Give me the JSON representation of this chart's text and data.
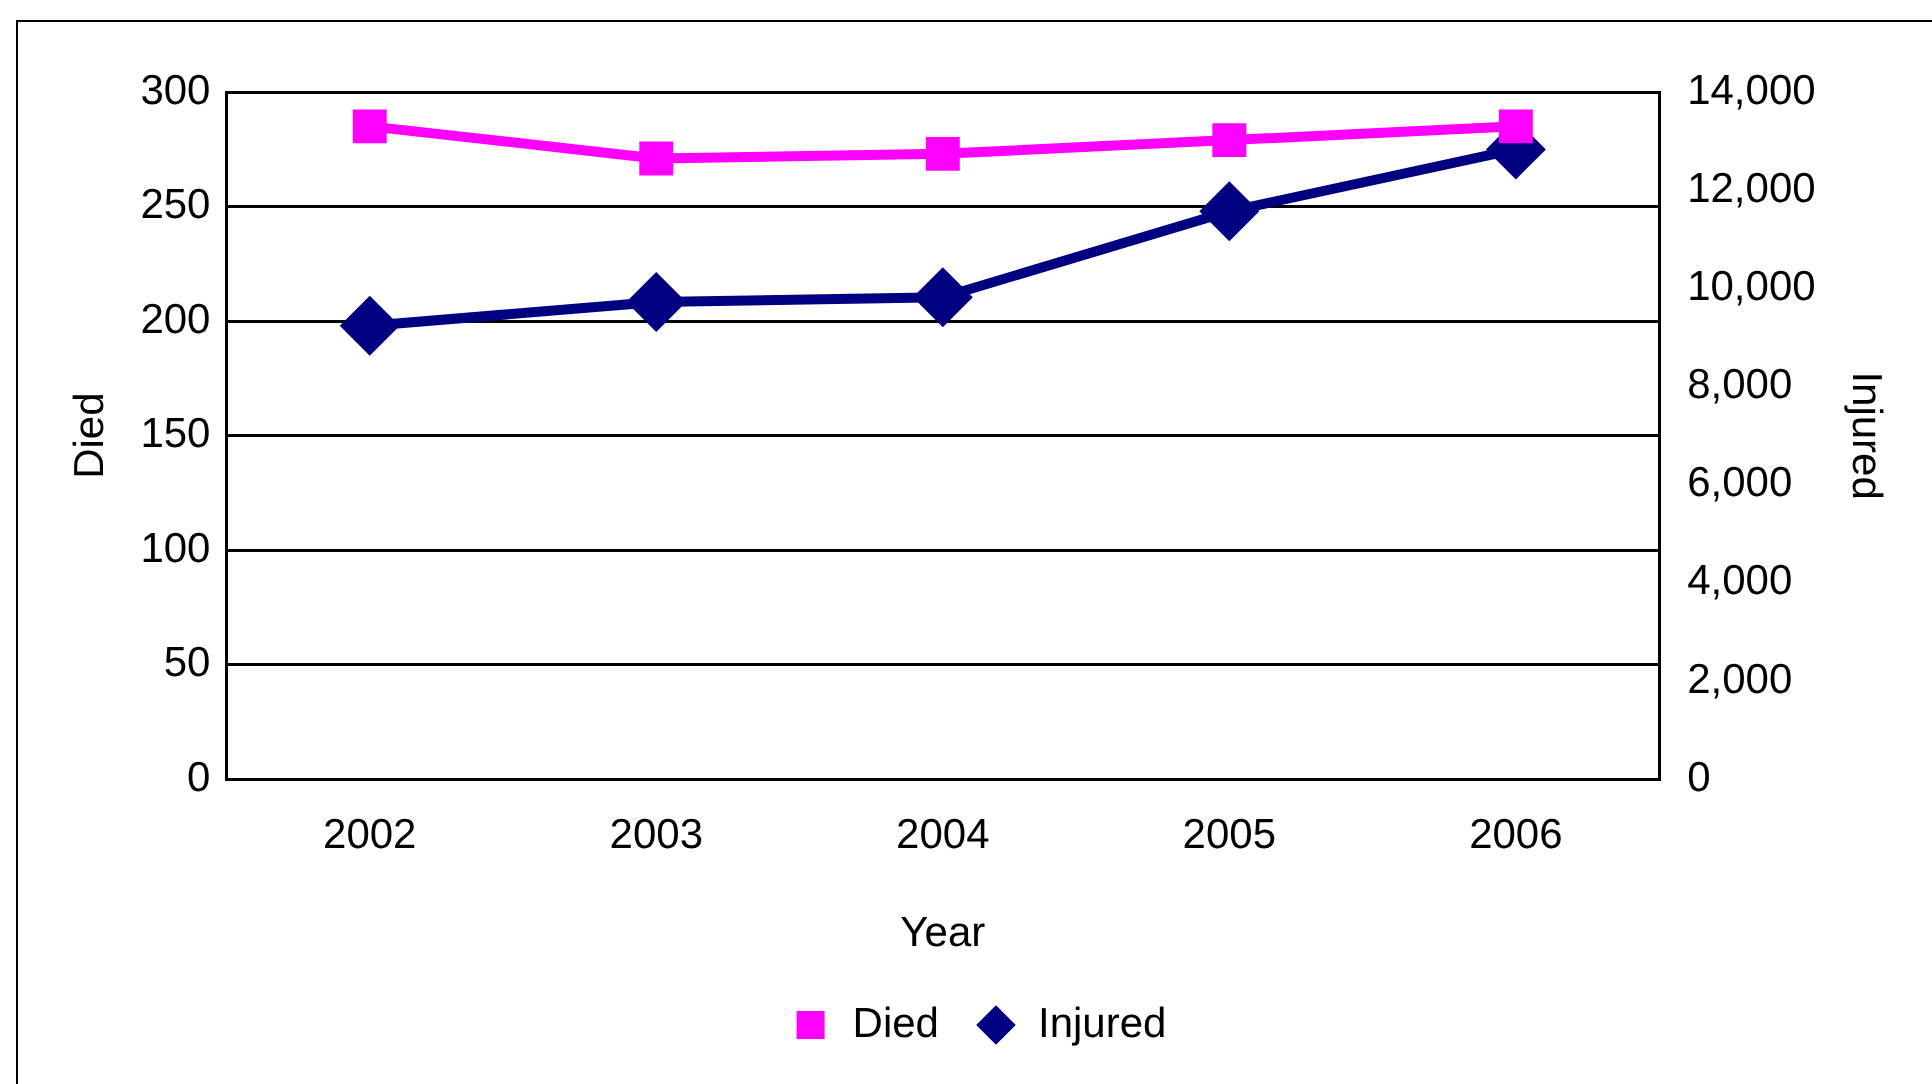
{
  "chart_data": {
    "type": "line",
    "xlabel": "Year",
    "ylabel": "Died",
    "y2label": "Injured",
    "categories": [
      "2002",
      "2003",
      "2004",
      "2005",
      "2006"
    ],
    "series": [
      {
        "name": "Died",
        "color": "#ff00ff",
        "values": [
          285,
          271,
          273,
          279,
          285
        ],
        "marker": "square"
      },
      {
        "name": "Injured",
        "color": "#000080",
        "values": [
          9240,
          9720,
          9820,
          11570,
          12830
        ],
        "axis": "y2",
        "marker": "diamond"
      }
    ],
    "ylim": [
      0,
      300
    ],
    "yticks": [
      0,
      50,
      100,
      150,
      200,
      250,
      300
    ],
    "y2lim": [
      0,
      14000
    ],
    "y2ticks": [
      0,
      {
        "value": 2000,
        "label": "2,000"
      },
      {
        "value": 4000,
        "label": "4,000"
      },
      {
        "value": 6000,
        "label": "6,000"
      },
      {
        "value": 8000,
        "label": "8,000"
      },
      {
        "value": 10000,
        "label": "10,000"
      },
      {
        "value": 12000,
        "label": "12,000"
      },
      {
        "value": 14000,
        "label": "14,000"
      }
    ],
    "grid": "y",
    "legend": "bottom",
    "line_style": "solid"
  }
}
